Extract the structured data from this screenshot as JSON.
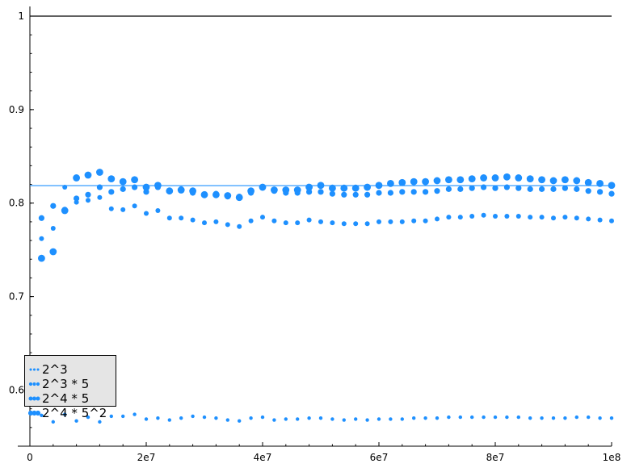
{
  "chart_data": {
    "type": "scatter",
    "title": "",
    "xlabel": "",
    "ylabel": "",
    "xlim": [
      0,
      100000000
    ],
    "ylim": [
      0.54,
      1.0
    ],
    "x_ticks": [
      {
        "value": 0,
        "label": "0"
      },
      {
        "value": 20000000,
        "label": "2e7"
      },
      {
        "value": 40000000,
        "label": "4e7"
      },
      {
        "value": 60000000,
        "label": "6e7"
      },
      {
        "value": 80000000,
        "label": "8e7"
      },
      {
        "value": 100000000,
        "label": "1e8"
      }
    ],
    "y_ticks": [
      {
        "value": 0.6,
        "label": "0.6"
      },
      {
        "value": 0.7,
        "label": "0.7"
      },
      {
        "value": 0.8,
        "label": "0.8"
      },
      {
        "value": 0.9,
        "label": "0.9"
      },
      {
        "value": 1.0,
        "label": "1"
      }
    ],
    "hlines": [
      {
        "y": 1.0,
        "color": "#000000"
      },
      {
        "y": 0.8187,
        "color": "#1e90ff"
      }
    ],
    "grid": false,
    "legend_position": "lower-left",
    "marker_color": "#1e90ff",
    "x": [
      2000000,
      4000000,
      6000000,
      8000000,
      10000000,
      12000000,
      14000000,
      16000000,
      18000000,
      20000000,
      22000000,
      24000000,
      26000000,
      28000000,
      30000000,
      32000000,
      34000000,
      36000000,
      38000000,
      40000000,
      42000000,
      44000000,
      46000000,
      48000000,
      50000000,
      52000000,
      54000000,
      56000000,
      58000000,
      60000000,
      62000000,
      64000000,
      66000000,
      68000000,
      70000000,
      72000000,
      74000000,
      76000000,
      78000000,
      80000000,
      82000000,
      84000000,
      86000000,
      88000000,
      90000000,
      92000000,
      94000000,
      96000000,
      98000000,
      100000000
    ],
    "series": [
      {
        "name": "2^3",
        "marker_size": 2.2,
        "values": [
          0.573,
          0.566,
          0.574,
          0.567,
          0.571,
          0.566,
          0.572,
          0.572,
          0.574,
          0.569,
          0.57,
          0.568,
          0.57,
          0.572,
          0.571,
          0.57,
          0.568,
          0.567,
          0.57,
          0.571,
          0.568,
          0.569,
          0.569,
          0.57,
          0.57,
          0.569,
          0.568,
          0.569,
          0.568,
          0.569,
          0.569,
          0.569,
          0.57,
          0.57,
          0.57,
          0.571,
          0.571,
          0.571,
          0.571,
          0.571,
          0.571,
          0.571,
          0.57,
          0.57,
          0.57,
          0.57,
          0.571,
          0.571,
          0.57,
          0.57
        ]
      },
      {
        "name": "2^3 * 5",
        "marker_size": 3.0,
        "values": [
          0.762,
          0.773,
          0.817,
          0.801,
          0.803,
          0.806,
          0.794,
          0.793,
          0.797,
          0.789,
          0.792,
          0.784,
          0.784,
          0.782,
          0.779,
          0.78,
          0.777,
          0.775,
          0.781,
          0.785,
          0.781,
          0.779,
          0.779,
          0.782,
          0.78,
          0.779,
          0.778,
          0.778,
          0.778,
          0.78,
          0.78,
          0.78,
          0.781,
          0.781,
          0.783,
          0.785,
          0.785,
          0.786,
          0.787,
          0.786,
          0.786,
          0.786,
          0.785,
          0.785,
          0.784,
          0.785,
          0.784,
          0.783,
          0.782,
          0.781
        ]
      },
      {
        "name": "2^4 * 5",
        "marker_size": 3.6,
        "values": [
          0.784,
          0.797,
          0.793,
          0.805,
          0.809,
          0.817,
          0.812,
          0.815,
          0.817,
          0.812,
          0.817,
          0.813,
          0.815,
          0.811,
          0.809,
          0.81,
          0.807,
          0.807,
          0.811,
          0.817,
          0.813,
          0.811,
          0.811,
          0.812,
          0.812,
          0.81,
          0.809,
          0.809,
          0.809,
          0.811,
          0.811,
          0.812,
          0.812,
          0.812,
          0.813,
          0.815,
          0.815,
          0.816,
          0.817,
          0.816,
          0.817,
          0.816,
          0.815,
          0.815,
          0.815,
          0.816,
          0.815,
          0.813,
          0.812,
          0.81
        ]
      },
      {
        "name": "2^4 * 5^2",
        "marker_size": 4.4,
        "values": [
          0.741,
          0.748,
          0.792,
          0.827,
          0.83,
          0.833,
          0.826,
          0.823,
          0.825,
          0.817,
          0.819,
          0.813,
          0.814,
          0.813,
          0.809,
          0.809,
          0.808,
          0.806,
          0.813,
          0.817,
          0.814,
          0.814,
          0.814,
          0.817,
          0.819,
          0.816,
          0.816,
          0.816,
          0.817,
          0.819,
          0.821,
          0.822,
          0.823,
          0.823,
          0.824,
          0.825,
          0.825,
          0.826,
          0.827,
          0.827,
          0.828,
          0.827,
          0.826,
          0.825,
          0.824,
          0.825,
          0.824,
          0.822,
          0.821,
          0.819
        ]
      }
    ]
  }
}
